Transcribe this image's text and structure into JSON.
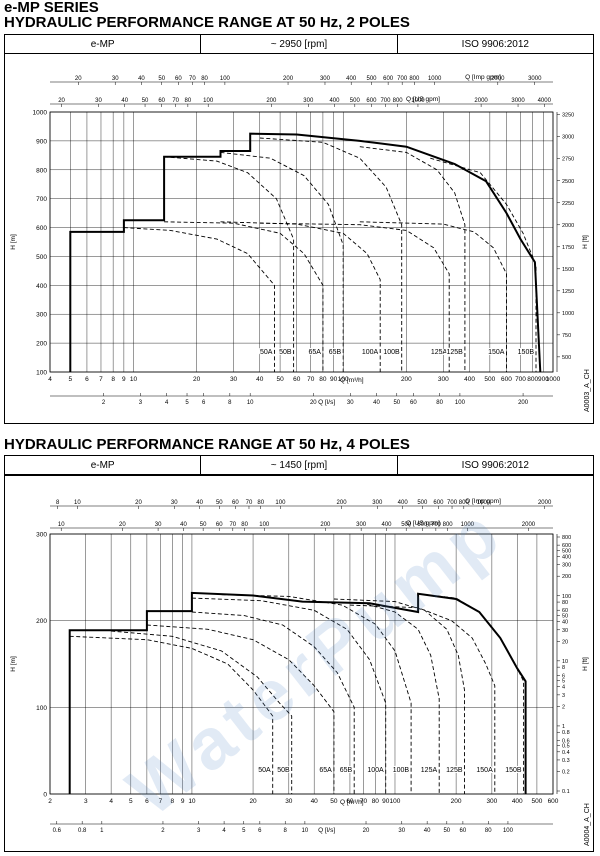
{
  "series_title": "e-MP SERIES",
  "watermark": "WaterPump",
  "charts": [
    {
      "title": "HYDRAULIC PERFORMANCE RANGE AT 50 Hz, 2 POLES",
      "header": {
        "model": "e-MP",
        "speed": "~ 2950 [rpm]",
        "standard": "ISO 9906:2012"
      },
      "code": "A0003_A_CH",
      "axis_labels": {
        "imp_gpm": "Q [Imp gpm]",
        "us_gpm": "Q [US gpm]",
        "m3h": "Q [m³/h]",
        "ls": "Q [l/s]",
        "h_m": "H [m]",
        "h_ft": "H [ft]"
      },
      "ticks": {
        "imp_gpm": [
          20,
          30,
          40,
          50,
          60,
          70,
          80,
          100,
          200,
          300,
          400,
          500,
          600,
          700,
          800,
          1000,
          2000,
          3000
        ],
        "us_gpm": [
          20,
          30,
          40,
          50,
          60,
          70,
          80,
          100,
          200,
          300,
          400,
          500,
          600,
          700,
          800,
          1000,
          2000,
          3000,
          4000
        ],
        "m3h": [
          4,
          5,
          6,
          7,
          8,
          9,
          10,
          20,
          30,
          40,
          50,
          60,
          70,
          80,
          90,
          100,
          200,
          300,
          400,
          500,
          600,
          700,
          800,
          900,
          1000
        ],
        "m3h_labels": [
          "4",
          "5",
          "6",
          "7",
          "8",
          "9",
          "10",
          "20",
          "30",
          "40",
          "50",
          "60",
          "70",
          "80",
          "90",
          "100",
          "200",
          "300",
          "400",
          "500",
          "600",
          "700",
          "800",
          "900",
          "1000"
        ],
        "ls": [
          2,
          3,
          4,
          5,
          6,
          8,
          10,
          20,
          30,
          40,
          50,
          60,
          80,
          100,
          200
        ],
        "h_m": [
          100,
          200,
          300,
          400,
          500,
          600,
          700,
          800,
          900,
          1000
        ],
        "h_ft": [
          500,
          750,
          1000,
          1250,
          1500,
          1750,
          2000,
          2250,
          2500,
          2750,
          3000,
          3250
        ]
      }
    },
    {
      "title": "HYDRAULIC PERFORMANCE RANGE AT 50 Hz, 4 POLES",
      "header": {
        "model": "e-MP",
        "speed": "~ 1450 [rpm]",
        "standard": "ISO 9906:2012"
      },
      "code": "A0004_A_CH",
      "axis_labels": {
        "imp_gpm": "Q [Imp gpm]",
        "us_gpm": "Q [US gpm]",
        "m3h": "Q [m³/h]",
        "ls": "Q [l/s]",
        "h_m": "H [m]",
        "h_ft": "H [ft]"
      },
      "ticks": {
        "imp_gpm": [
          8,
          10,
          20,
          30,
          40,
          50,
          60,
          70,
          80,
          100,
          200,
          300,
          400,
          500,
          600,
          700,
          800,
          1000,
          2000
        ],
        "us_gpm": [
          10,
          20,
          30,
          40,
          50,
          60,
          70,
          80,
          100,
          200,
          300,
          400,
          500,
          600,
          700,
          800,
          1000,
          2000
        ],
        "m3h": [
          2,
          3,
          4,
          5,
          6,
          7,
          8,
          9,
          10,
          20,
          30,
          40,
          50,
          60,
          70,
          80,
          90,
          100,
          200,
          300,
          400,
          500,
          600
        ],
        "m3h_labels": [
          "2",
          "3",
          "4",
          "5",
          "6",
          "7",
          "8",
          "9",
          "10",
          "20",
          "30",
          "40",
          "50",
          "60",
          "70",
          "80",
          "90",
          "100",
          "200",
          "300",
          "400",
          "500",
          "600"
        ],
        "ls": [
          0.6,
          0.8,
          1,
          2,
          3,
          4,
          5,
          6,
          8,
          10,
          20,
          30,
          40,
          50,
          60,
          80,
          100
        ],
        "h_m": [
          0,
          100,
          200,
          300
        ],
        "h_ft": [
          0.1,
          0.2,
          0.3,
          0.4,
          0.5,
          0.6,
          0.8,
          1,
          2,
          3,
          4,
          5,
          6,
          8,
          10,
          20,
          30,
          40,
          50,
          60,
          80,
          100,
          200,
          300,
          400,
          500,
          600,
          800
        ]
      }
    }
  ],
  "chart_data": [
    {
      "type": "line",
      "title": "HYDRAULIC PERFORMANCE RANGE AT 50 Hz, 2 POLES",
      "xlabel": "Q [m³/h]",
      "ylabel": "H [m]",
      "xscale": "log",
      "xlim": [
        4,
        1000
      ],
      "ylim": [
        100,
        1000
      ],
      "envelope": [
        [
          5,
          100
        ],
        [
          5,
          585
        ],
        [
          9,
          585
        ],
        [
          9,
          625
        ],
        [
          14,
          625
        ],
        [
          14,
          845
        ],
        [
          26,
          845
        ],
        [
          26,
          865
        ],
        [
          36,
          865
        ],
        [
          36,
          925
        ],
        [
          60,
          922
        ],
        [
          120,
          900
        ],
        [
          200,
          880
        ],
        [
          340,
          820
        ],
        [
          480,
          760
        ],
        [
          600,
          650
        ],
        [
          700,
          560
        ],
        [
          820,
          480
        ],
        [
          870,
          100
        ]
      ],
      "series": [
        {
          "name": "50A",
          "qmax": 47,
          "head": 600,
          "pts": [
            [
              9,
              600
            ],
            [
              15,
              590
            ],
            [
              25,
              560
            ],
            [
              35,
              510
            ],
            [
              47,
              400
            ],
            [
              47,
              100
            ]
          ]
        },
        {
          "name": "50B",
          "qmax": 58,
          "head": 850,
          "pts": [
            [
              14,
              845
            ],
            [
              25,
              830
            ],
            [
              35,
              790
            ],
            [
              48,
              700
            ],
            [
              58,
              560
            ],
            [
              58,
              100
            ]
          ]
        },
        {
          "name": "65A",
          "qmax": 80,
          "head": 620,
          "pts": [
            [
              14,
              620
            ],
            [
              30,
              615
            ],
            [
              50,
              580
            ],
            [
              65,
              510
            ],
            [
              80,
              400
            ],
            [
              80,
              100
            ]
          ]
        },
        {
          "name": "65B",
          "qmax": 100,
          "head": 860,
          "pts": [
            [
              26,
              860
            ],
            [
              45,
              840
            ],
            [
              65,
              780
            ],
            [
              85,
              680
            ],
            [
              100,
              540
            ],
            [
              100,
              100
            ]
          ]
        },
        {
          "name": "100A",
          "qmax": 150,
          "head": 620,
          "pts": [
            [
              26,
              620
            ],
            [
              60,
              612
            ],
            [
              100,
              580
            ],
            [
              130,
              510
            ],
            [
              150,
              420
            ],
            [
              150,
              100
            ]
          ]
        },
        {
          "name": "100B",
          "qmax": 190,
          "head": 910,
          "pts": [
            [
              40,
              910
            ],
            [
              80,
              895
            ],
            [
              120,
              840
            ],
            [
              160,
              740
            ],
            [
              190,
              610
            ],
            [
              190,
              100
            ]
          ]
        },
        {
          "name": "125A",
          "qmax": 320,
          "head": 615,
          "pts": [
            [
              40,
              615
            ],
            [
              120,
              610
            ],
            [
              200,
              590
            ],
            [
              270,
              530
            ],
            [
              320,
              440
            ],
            [
              320,
              100
            ]
          ]
        },
        {
          "name": "125B",
          "qmax": 380,
          "head": 880,
          "pts": [
            [
              120,
              880
            ],
            [
              200,
              860
            ],
            [
              280,
              800
            ],
            [
              340,
              720
            ],
            [
              380,
              610
            ],
            [
              380,
              100
            ]
          ]
        },
        {
          "name": "150A",
          "qmax": 600,
          "head": 620,
          "pts": [
            [
              120,
              620
            ],
            [
              300,
              612
            ],
            [
              420,
              585
            ],
            [
              520,
              530
            ],
            [
              600,
              440
            ],
            [
              600,
              100
            ]
          ]
        },
        {
          "name": "150B",
          "qmax": 830,
          "head": 840,
          "pts": [
            [
              260,
              840
            ],
            [
              450,
              790
            ],
            [
              600,
              680
            ],
            [
              720,
              580
            ],
            [
              830,
              470
            ],
            [
              830,
              100
            ]
          ]
        }
      ]
    },
    {
      "type": "line",
      "title": "HYDRAULIC PERFORMANCE RANGE AT 50 Hz, 4 POLES",
      "xlabel": "Q [m³/h]",
      "ylabel": "H [m]",
      "xscale": "log",
      "xlim": [
        2,
        600
      ],
      "ylim": [
        0,
        300
      ],
      "envelope": [
        [
          2.5,
          0
        ],
        [
          2.5,
          189
        ],
        [
          6,
          189
        ],
        [
          6,
          211
        ],
        [
          10,
          211
        ],
        [
          10,
          232
        ],
        [
          20,
          229
        ],
        [
          35,
          222
        ],
        [
          75,
          220
        ],
        [
          130,
          210
        ],
        [
          130,
          231
        ],
        [
          200,
          225
        ],
        [
          260,
          210
        ],
        [
          330,
          180
        ],
        [
          400,
          145
        ],
        [
          440,
          130
        ],
        [
          440,
          0
        ]
      ],
      "series": [
        {
          "name": "50A",
          "qmax": 25,
          "head": 182,
          "pts": [
            [
              2.5,
              182
            ],
            [
              6,
              178
            ],
            [
              10,
              168
            ],
            [
              15,
              150
            ],
            [
              20,
              120
            ],
            [
              25,
              90
            ],
            [
              25,
              0
            ]
          ]
        },
        {
          "name": "50B",
          "qmax": 31,
          "head": 188,
          "pts": [
            [
              4,
              188
            ],
            [
              8,
              182
            ],
            [
              14,
              165
            ],
            [
              21,
              135
            ],
            [
              27,
              105
            ],
            [
              31,
              90
            ],
            [
              31,
              0
            ]
          ]
        },
        {
          "name": "65A",
          "qmax": 50,
          "head": 195,
          "pts": [
            [
              6,
              195
            ],
            [
              12,
              190
            ],
            [
              20,
              178
            ],
            [
              30,
              155
            ],
            [
              40,
              125
            ],
            [
              50,
              95
            ],
            [
              50,
              0
            ]
          ]
        },
        {
          "name": "65B",
          "qmax": 63,
          "head": 210,
          "pts": [
            [
              10,
              210
            ],
            [
              18,
              206
            ],
            [
              28,
              195
            ],
            [
              40,
              170
            ],
            [
              52,
              140
            ],
            [
              63,
              100
            ],
            [
              63,
              0
            ]
          ]
        },
        {
          "name": "100A",
          "qmax": 90,
          "head": 225,
          "pts": [
            [
              10,
              226
            ],
            [
              22,
              223
            ],
            [
              40,
              212
            ],
            [
              58,
              190
            ],
            [
              75,
              155
            ],
            [
              90,
              105
            ],
            [
              90,
              0
            ]
          ]
        },
        {
          "name": "100B",
          "qmax": 120,
          "head": 230,
          "pts": [
            [
              14,
              230
            ],
            [
              30,
              228
            ],
            [
              55,
              218
            ],
            [
              80,
              196
            ],
            [
              100,
              165
            ],
            [
              120,
              105
            ],
            [
              120,
              0
            ]
          ]
        },
        {
          "name": "125A",
          "qmax": 165,
          "head": 222,
          "pts": [
            [
              35,
              222
            ],
            [
              70,
              220
            ],
            [
              100,
              210
            ],
            [
              130,
              190
            ],
            [
              150,
              160
            ],
            [
              165,
              110
            ],
            [
              165,
              0
            ]
          ]
        },
        {
          "name": "125B",
          "qmax": 220,
          "head": 225,
          "pts": [
            [
              50,
              225
            ],
            [
              100,
              222
            ],
            [
              140,
              212
            ],
            [
              180,
              190
            ],
            [
              205,
              160
            ],
            [
              220,
              120
            ],
            [
              220,
              0
            ]
          ]
        },
        {
          "name": "150A",
          "qmax": 310,
          "head": 218,
          "pts": [
            [
              60,
              218
            ],
            [
              130,
              215
            ],
            [
              190,
              200
            ],
            [
              240,
              180
            ],
            [
              280,
              150
            ],
            [
              310,
              125
            ],
            [
              310,
              0
            ]
          ]
        },
        {
          "name": "150B",
          "qmax": 430,
          "head": 232,
          "pts": [
            [
              130,
              231
            ],
            [
              200,
              226
            ],
            [
              260,
              210
            ],
            [
              330,
              180
            ],
            [
              390,
              150
            ],
            [
              430,
              130
            ],
            [
              430,
              0
            ]
          ]
        }
      ]
    }
  ]
}
